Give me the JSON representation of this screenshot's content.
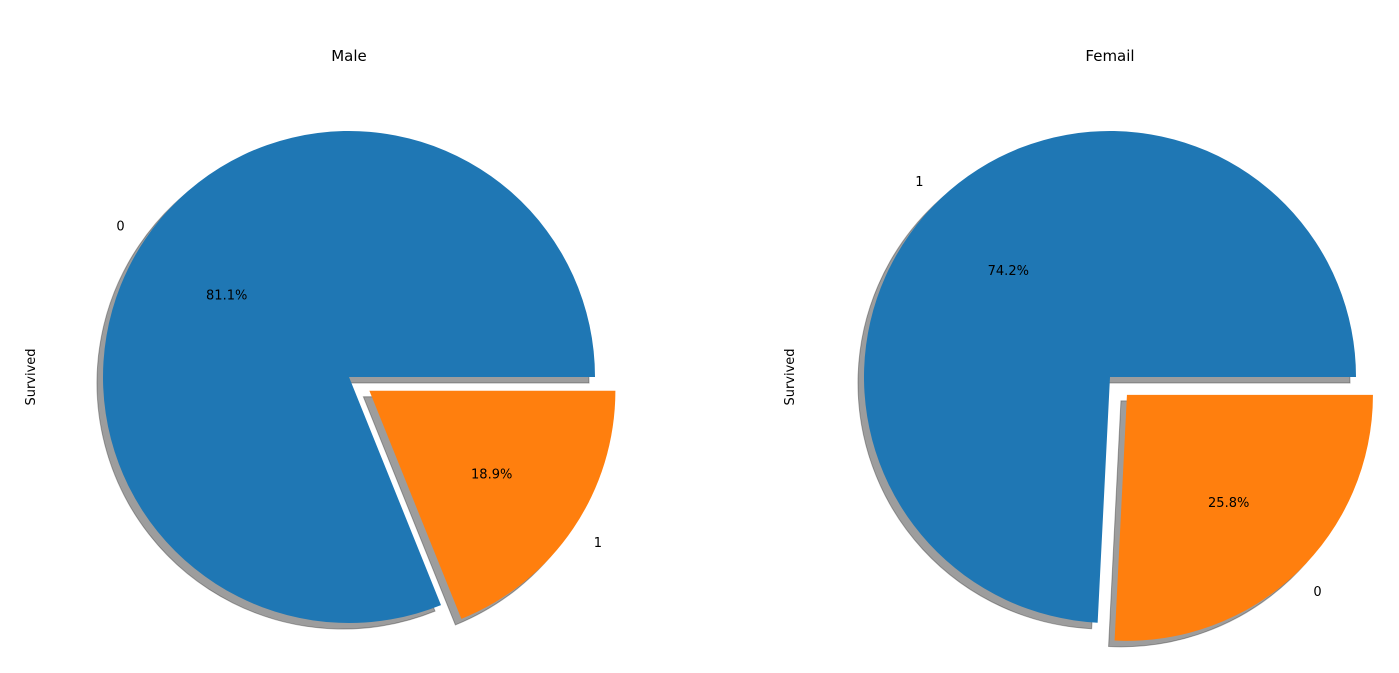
{
  "chart_data": [
    {
      "type": "pie",
      "title": "Male",
      "ylabel": "Survived",
      "slices": [
        {
          "label": "0",
          "value": 81.1,
          "pct_label": "81.1%",
          "color": "#1f77b4"
        },
        {
          "label": "1",
          "value": 18.9,
          "pct_label": "18.9%",
          "color": "#ff7f0e"
        }
      ],
      "explode": [
        0,
        0.1
      ],
      "shadow": true,
      "startangle": 0
    },
    {
      "type": "pie",
      "title": "Femail",
      "ylabel": "Survived",
      "slices": [
        {
          "label": "1",
          "value": 74.2,
          "pct_label": "74.2%",
          "color": "#1f77b4"
        },
        {
          "label": "0",
          "value": 25.8,
          "pct_label": "25.8%",
          "color": "#ff7f0e"
        }
      ],
      "explode": [
        0,
        0.1
      ],
      "shadow": true,
      "startangle": 0
    }
  ]
}
